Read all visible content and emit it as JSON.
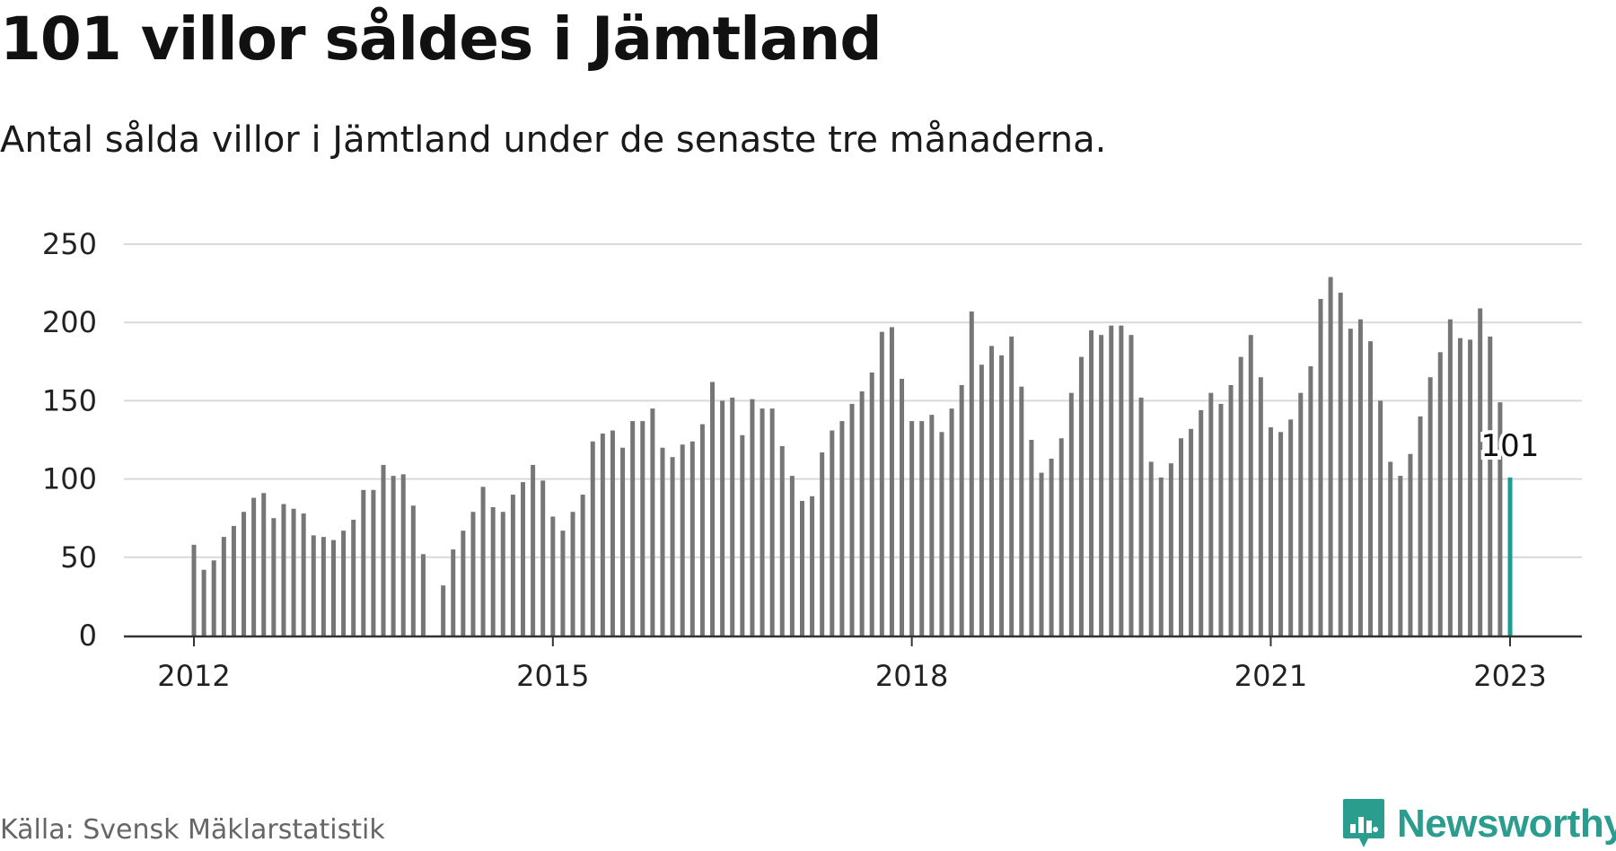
{
  "header": {
    "title": "101 villor såldes i Jämtland",
    "subtitle": "Antal sålda villor i Jämtland under de senaste tre månaderna."
  },
  "footer": {
    "source": "Källa: Svensk Mäklarstatistik",
    "brand": "Newsworthy"
  },
  "colors": {
    "bar": "#767676",
    "highlight": "#1a9e93",
    "grid": "#d9d9d9",
    "brand": "#2a9d8f"
  },
  "chart_data": {
    "type": "bar",
    "x_start": "2012-01",
    "x_end": "2023-01",
    "interval": "month",
    "x_ticks": [
      "2012",
      "2015",
      "2018",
      "2021",
      "2023"
    ],
    "y_ticks": [
      0,
      50,
      100,
      150,
      200,
      250
    ],
    "ylim": [
      0,
      250
    ],
    "grid": true,
    "values": [
      58,
      42,
      48,
      63,
      70,
      79,
      88,
      91,
      75,
      84,
      81,
      78,
      64,
      63,
      61,
      67,
      74,
      93,
      93,
      109,
      102,
      103,
      83,
      52,
      null,
      32,
      55,
      67,
      79,
      95,
      82,
      79,
      90,
      98,
      109,
      99,
      76,
      67,
      79,
      90,
      124,
      129,
      131,
      120,
      137,
      137,
      145,
      120,
      114,
      122,
      124,
      135,
      162,
      150,
      152,
      128,
      151,
      145,
      145,
      121,
      102,
      86,
      89,
      117,
      131,
      137,
      148,
      156,
      168,
      194,
      197,
      164,
      137,
      137,
      141,
      130,
      145,
      160,
      207,
      173,
      185,
      179,
      191,
      159,
      125,
      104,
      113,
      126,
      155,
      178,
      195,
      192,
      198,
      198,
      192,
      152,
      111,
      101,
      110,
      126,
      132,
      144,
      155,
      148,
      160,
      178,
      192,
      165,
      133,
      130,
      138,
      155,
      172,
      215,
      229,
      219,
      196,
      202,
      188,
      150,
      111,
      102,
      116,
      140,
      165,
      181,
      202,
      190,
      189,
      209,
      191,
      149,
      101
    ],
    "highlight_label": "101"
  }
}
